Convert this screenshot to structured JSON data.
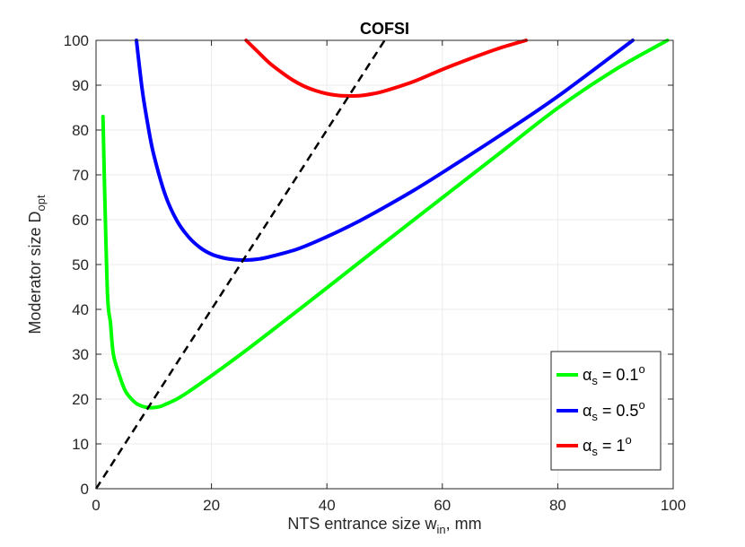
{
  "chart_data": {
    "type": "line",
    "title": "COFSI",
    "xlabel": {
      "main": "NTS entrance size w",
      "sub": "in",
      "suffix": ", mm"
    },
    "ylabel": {
      "main": "Moderator size D",
      "sub": "opt"
    },
    "xlim": [
      0,
      100
    ],
    "ylim": [
      0,
      100
    ],
    "xticks": [
      0,
      20,
      40,
      60,
      80,
      100
    ],
    "yticks": [
      0,
      10,
      20,
      30,
      40,
      50,
      60,
      70,
      80,
      90,
      100
    ],
    "grid": true,
    "legend_position": "bottom-right",
    "series": [
      {
        "name": "α_s = 0.1°",
        "legend": {
          "symbol": "α",
          "sub": "s",
          "text": " = 0.1",
          "sup": "o"
        },
        "color": "#00ff00",
        "points": [
          [
            1.2,
            83
          ],
          [
            1.5,
            66
          ],
          [
            2,
            43
          ],
          [
            2.5,
            37
          ],
          [
            3,
            30
          ],
          [
            4,
            25.5
          ],
          [
            5,
            22
          ],
          [
            6,
            20.2
          ],
          [
            7,
            19
          ],
          [
            8,
            18.4
          ],
          [
            9,
            18.1
          ],
          [
            10,
            18.1
          ],
          [
            11,
            18.3
          ],
          [
            12,
            18.8
          ],
          [
            14,
            20
          ],
          [
            16,
            21.6
          ],
          [
            20,
            25.2
          ],
          [
            25,
            29.9
          ],
          [
            30,
            34.8
          ],
          [
            40,
            44.8
          ],
          [
            50,
            54.9
          ],
          [
            60,
            64.9
          ],
          [
            70,
            74.9
          ],
          [
            80,
            84.9
          ],
          [
            90,
            93.5
          ],
          [
            99,
            100
          ]
        ]
      },
      {
        "name": "α_s = 0.5°",
        "legend": {
          "symbol": "α",
          "sub": "s",
          "text": " = 0.5",
          "sup": "o"
        },
        "color": "#0000ff",
        "points": [
          [
            7,
            100
          ],
          [
            8,
            89
          ],
          [
            9,
            81
          ],
          [
            10,
            74.5
          ],
          [
            12,
            65.5
          ],
          [
            14,
            59.8
          ],
          [
            16,
            56.2
          ],
          [
            18,
            53.8
          ],
          [
            20,
            52.3
          ],
          [
            22,
            51.5
          ],
          [
            24,
            51.1
          ],
          [
            26,
            51
          ],
          [
            28,
            51.2
          ],
          [
            30,
            51.7
          ],
          [
            35,
            53.5
          ],
          [
            40,
            56.2
          ],
          [
            45,
            59.3
          ],
          [
            50,
            62.8
          ],
          [
            55,
            66.5
          ],
          [
            60,
            70.5
          ],
          [
            70,
            78.8
          ],
          [
            80,
            87.5
          ],
          [
            93,
            100
          ]
        ]
      },
      {
        "name": "α_s = 1°",
        "legend": {
          "symbol": "α",
          "sub": "s",
          "text": " = 1",
          "sup": "o"
        },
        "color": "#ff0000",
        "points": [
          [
            26,
            100
          ],
          [
            28,
            97.5
          ],
          [
            30,
            95
          ],
          [
            32,
            93
          ],
          [
            34,
            91.2
          ],
          [
            36,
            89.8
          ],
          [
            38,
            88.8
          ],
          [
            40,
            88.1
          ],
          [
            42,
            87.7
          ],
          [
            44,
            87.6
          ],
          [
            46,
            87.7
          ],
          [
            48,
            88.1
          ],
          [
            50,
            88.7
          ],
          [
            55,
            90.8
          ],
          [
            60,
            93.5
          ],
          [
            65,
            96
          ],
          [
            70,
            98.3
          ],
          [
            74.5,
            100
          ]
        ]
      },
      {
        "name": "optimum line",
        "color": "#000000",
        "dashed": true,
        "points": [
          [
            0,
            0
          ],
          [
            50,
            100
          ]
        ]
      }
    ]
  }
}
